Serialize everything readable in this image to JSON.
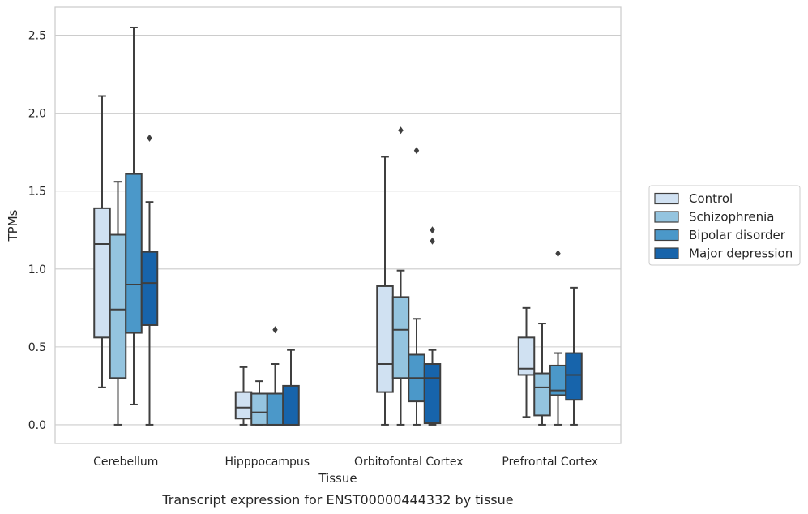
{
  "chart_data": {
    "type": "box",
    "caption": "Transcript expression for ENST00000444332 by tissue",
    "xlabel": "Tissue",
    "ylabel": "TPMs",
    "ylim": [
      -0.12,
      2.68
    ],
    "yticks": [
      0.0,
      0.5,
      1.0,
      1.5,
      2.0,
      2.5
    ],
    "ytick_labels": [
      "0.0",
      "0.5",
      "1.0",
      "1.5",
      "2.0",
      "2.5"
    ],
    "grid": "horizontal",
    "legend_position": "right",
    "categories": [
      "Cerebellum",
      "Hipppocampus",
      "Orbitofontal Cortex",
      "Prefrontal Cortex"
    ],
    "series": [
      {
        "name": "Control",
        "color": "#d0e1f2",
        "boxes": [
          {
            "whislo": 0.24,
            "q1": 0.56,
            "med": 1.16,
            "q3": 1.39,
            "whishi": 2.11,
            "fliers": []
          },
          {
            "whislo": 0.0,
            "q1": 0.04,
            "med": 0.11,
            "q3": 0.21,
            "whishi": 0.37,
            "fliers": []
          },
          {
            "whislo": 0.0,
            "q1": 0.21,
            "med": 0.39,
            "q3": 0.89,
            "whishi": 1.72,
            "fliers": []
          },
          {
            "whislo": 0.05,
            "q1": 0.32,
            "med": 0.36,
            "q3": 0.56,
            "whishi": 0.75,
            "fliers": []
          }
        ]
      },
      {
        "name": "Schizophrenia",
        "color": "#94c4df",
        "boxes": [
          {
            "whislo": 0.0,
            "q1": 0.3,
            "med": 0.74,
            "q3": 1.22,
            "whishi": 1.56,
            "fliers": []
          },
          {
            "whislo": 0.0,
            "q1": 0.0,
            "med": 0.08,
            "q3": 0.2,
            "whishi": 0.28,
            "fliers": []
          },
          {
            "whislo": 0.0,
            "q1": 0.3,
            "med": 0.61,
            "q3": 0.82,
            "whishi": 0.99,
            "fliers": [
              1.89
            ]
          },
          {
            "whislo": 0.0,
            "q1": 0.06,
            "med": 0.24,
            "q3": 0.33,
            "whishi": 0.65,
            "fliers": []
          }
        ]
      },
      {
        "name": "Bipolar disorder",
        "color": "#4b98c9",
        "boxes": [
          {
            "whislo": 0.13,
            "q1": 0.59,
            "med": 0.9,
            "q3": 1.61,
            "whishi": 2.55,
            "fliers": []
          },
          {
            "whislo": 0.0,
            "q1": 0.0,
            "med": 0.0,
            "q3": 0.2,
            "whishi": 0.39,
            "fliers": [
              0.61
            ]
          },
          {
            "whislo": 0.0,
            "q1": 0.15,
            "med": 0.3,
            "q3": 0.45,
            "whishi": 0.68,
            "fliers": [
              1.76
            ]
          },
          {
            "whislo": 0.0,
            "q1": 0.19,
            "med": 0.22,
            "q3": 0.38,
            "whishi": 0.46,
            "fliers": [
              1.1
            ]
          }
        ]
      },
      {
        "name": "Major depression",
        "color": "#1764ab",
        "boxes": [
          {
            "whislo": 0.0,
            "q1": 0.64,
            "med": 0.91,
            "q3": 1.11,
            "whishi": 1.43,
            "fliers": [
              1.84
            ]
          },
          {
            "whislo": 0.0,
            "q1": 0.0,
            "med": 0.0,
            "q3": 0.25,
            "whishi": 0.48,
            "fliers": []
          },
          {
            "whislo": 0.0,
            "q1": 0.01,
            "med": 0.3,
            "q3": 0.39,
            "whishi": 0.48,
            "fliers": [
              1.18,
              1.25
            ]
          },
          {
            "whislo": 0.0,
            "q1": 0.16,
            "med": 0.32,
            "q3": 0.46,
            "whishi": 0.88,
            "fliers": []
          }
        ]
      }
    ]
  }
}
